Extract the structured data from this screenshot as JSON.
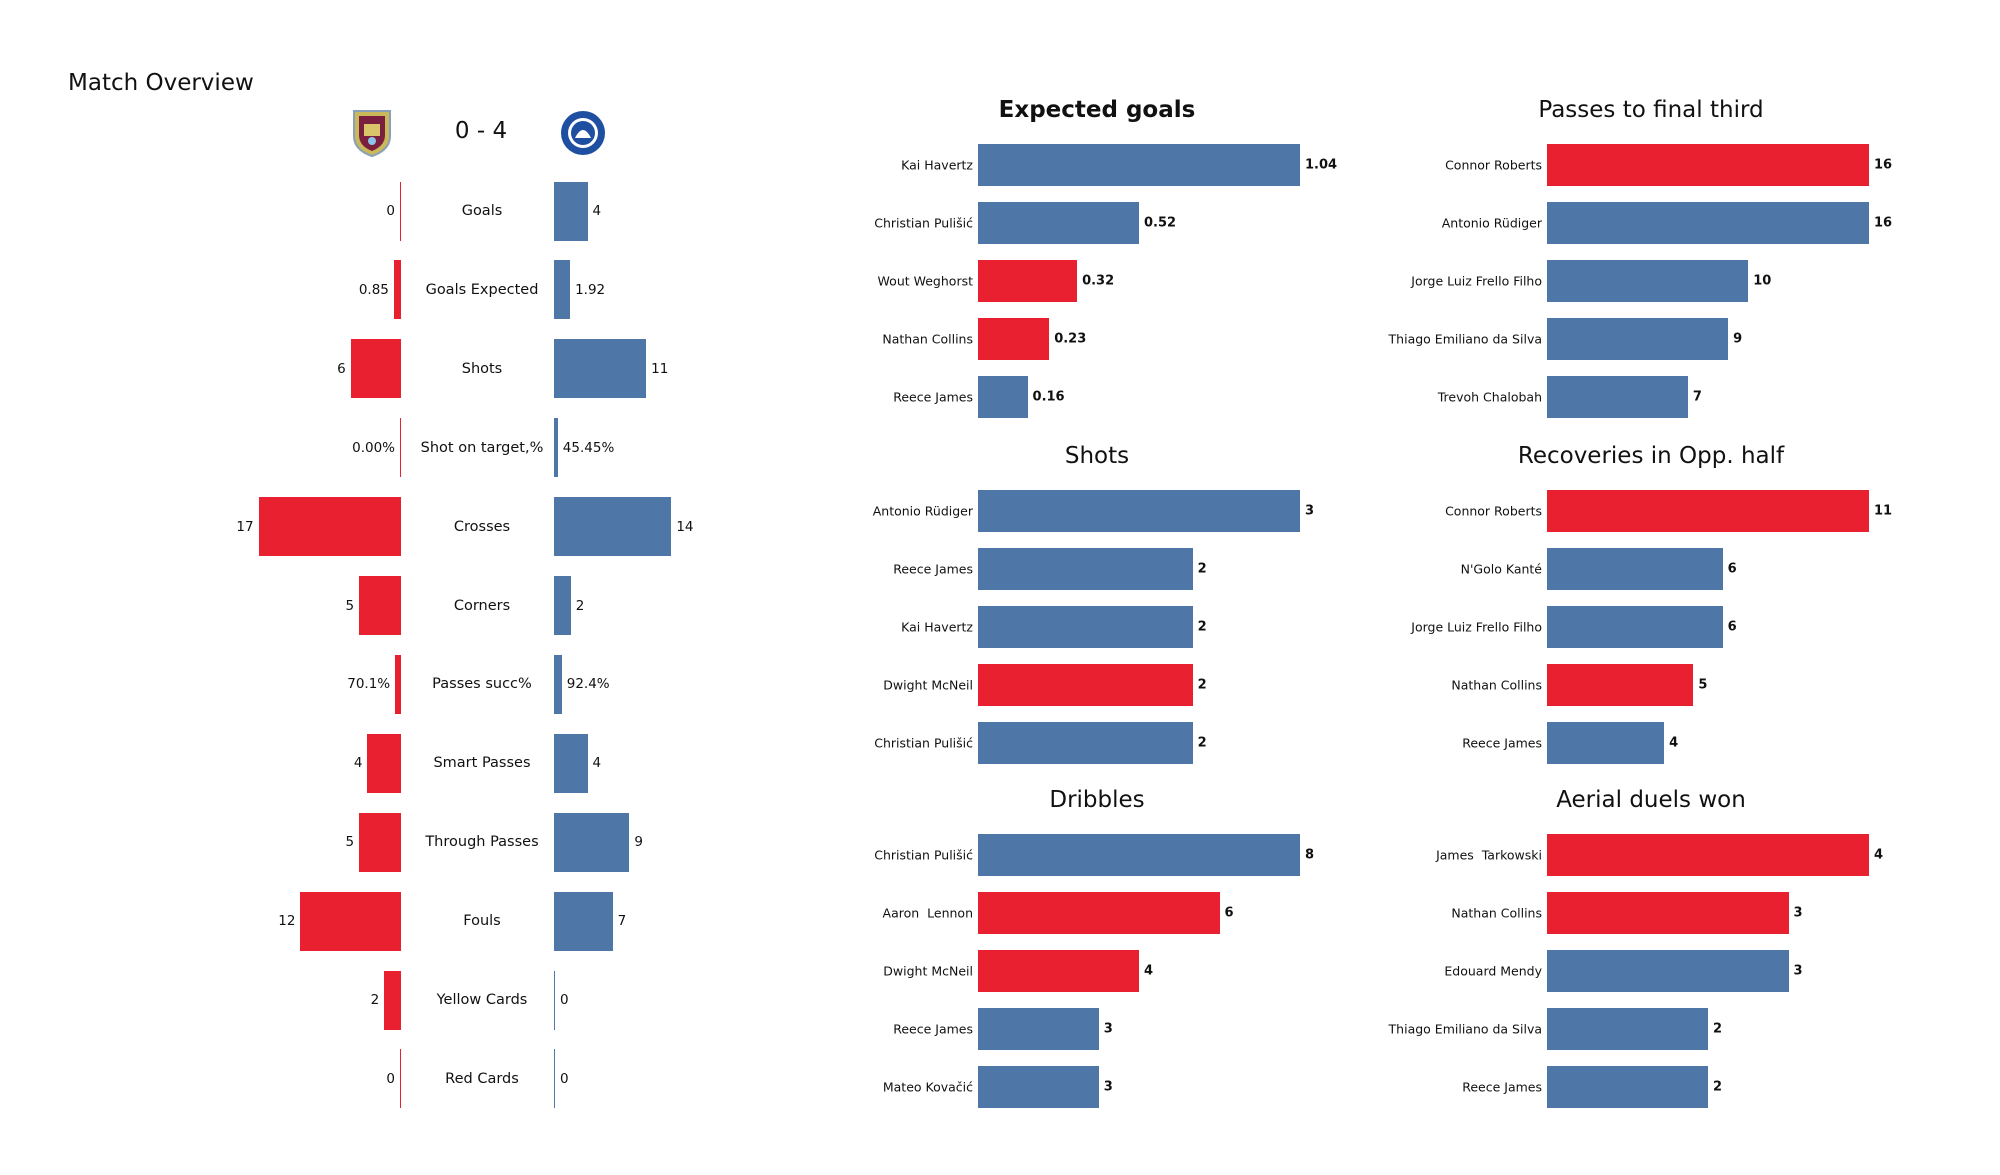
{
  "chart_data": [
    {
      "type": "diverging-bar",
      "title": "Match Overview",
      "score": "0 - 4",
      "categories": [
        "Goals",
        "Goals Expected",
        "Shots",
        "Shot on target,%",
        "Crosses",
        "Corners",
        "Passes succ%",
        "Smart Passes",
        "Through Passes",
        "Fouls",
        "Yellow Cards",
        "Red Cards"
      ],
      "series": [
        {
          "color": "#e8202f",
          "values": [
            0,
            0.85,
            6,
            0.0,
            17,
            5,
            70.1,
            4,
            5,
            12,
            2,
            0
          ],
          "value_labels": [
            "0",
            "0.85",
            "6",
            "0.00%",
            "17",
            "5",
            "70.1%",
            "4",
            "5",
            "12",
            "2",
            "0"
          ]
        },
        {
          "color": "#4e76a6",
          "values": [
            4,
            1.92,
            11,
            45.45,
            14,
            2,
            92.4,
            4,
            9,
            7,
            0,
            0
          ],
          "value_labels": [
            "4",
            "1.92",
            "11",
            "45.45%",
            "14",
            "2",
            "92.4%",
            "4",
            "9",
            "7",
            "0",
            "0"
          ]
        }
      ]
    },
    {
      "type": "hbar",
      "title": "Expected goals",
      "categories": [
        "Kai Havertz",
        "Christian Pulišić",
        "Wout Weghorst",
        "Nathan Collins",
        "Reece James"
      ],
      "values": [
        1.04,
        0.52,
        0.32,
        0.23,
        0.16
      ],
      "colors": [
        "#4e76a6",
        "#4e76a6",
        "#e8202f",
        "#e8202f",
        "#4e76a6"
      ]
    },
    {
      "type": "hbar",
      "title": "Passes to final third",
      "categories": [
        "Connor Roberts",
        "Antonio Rüdiger",
        "Jorge Luiz Frello Filho",
        "Thiago Emiliano da Silva",
        "Trevoh Chalobah"
      ],
      "values": [
        16,
        16,
        10,
        9,
        7
      ],
      "colors": [
        "#e8202f",
        "#4e76a6",
        "#4e76a6",
        "#4e76a6",
        "#4e76a6"
      ]
    },
    {
      "type": "hbar",
      "title": "Shots",
      "categories": [
        "Antonio Rüdiger",
        "Reece James",
        "Kai Havertz",
        "Dwight McNeil",
        "Christian Pulišić"
      ],
      "values": [
        3,
        2,
        2,
        2,
        2
      ],
      "colors": [
        "#4e76a6",
        "#4e76a6",
        "#4e76a6",
        "#e8202f",
        "#4e76a6"
      ]
    },
    {
      "type": "hbar",
      "title": "Recoveries in Opp. half",
      "categories": [
        "Connor Roberts",
        "N'Golo Kanté",
        "Jorge Luiz Frello Filho",
        "Nathan Collins",
        "Reece James"
      ],
      "values": [
        11,
        6,
        6,
        5,
        4
      ],
      "colors": [
        "#e8202f",
        "#4e76a6",
        "#4e76a6",
        "#e8202f",
        "#4e76a6"
      ]
    },
    {
      "type": "hbar",
      "title": "Dribbles",
      "categories": [
        "Christian Pulišić",
        "Aaron  Lennon",
        "Dwight McNeil",
        "Reece James",
        "Mateo Kovačić"
      ],
      "values": [
        8,
        6,
        4,
        3,
        3
      ],
      "colors": [
        "#4e76a6",
        "#e8202f",
        "#e8202f",
        "#4e76a6",
        "#4e76a6"
      ]
    },
    {
      "type": "hbar",
      "title": "Aerial duels won",
      "categories": [
        "James  Tarkowski",
        "Nathan Collins",
        "Edouard Mendy",
        "Thiago Emiliano da Silva",
        "Reece James"
      ],
      "values": [
        4,
        3,
        3,
        2,
        2
      ],
      "colors": [
        "#e8202f",
        "#e8202f",
        "#4e76a6",
        "#4e76a6",
        "#4e76a6"
      ]
    }
  ]
}
